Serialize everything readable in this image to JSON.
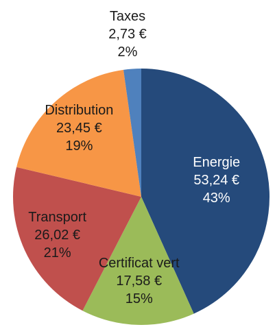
{
  "chart_data": {
    "type": "pie",
    "categories": [
      "Energie",
      "Certificat vert",
      "Transport",
      "Distribution",
      "Taxes"
    ],
    "values": [
      53.24,
      17.58,
      26.02,
      23.45,
      2.73
    ],
    "value_labels": [
      "53,24 €",
      "17,58 €",
      "26,02 €",
      "23,45 €",
      "2,73 €"
    ],
    "percent_labels": [
      "43%",
      "15%",
      "21%",
      "19%",
      "2%"
    ],
    "colors": [
      "#254a7b",
      "#9bbb59",
      "#c0504d",
      "#f79646",
      "#4f81bd"
    ]
  }
}
